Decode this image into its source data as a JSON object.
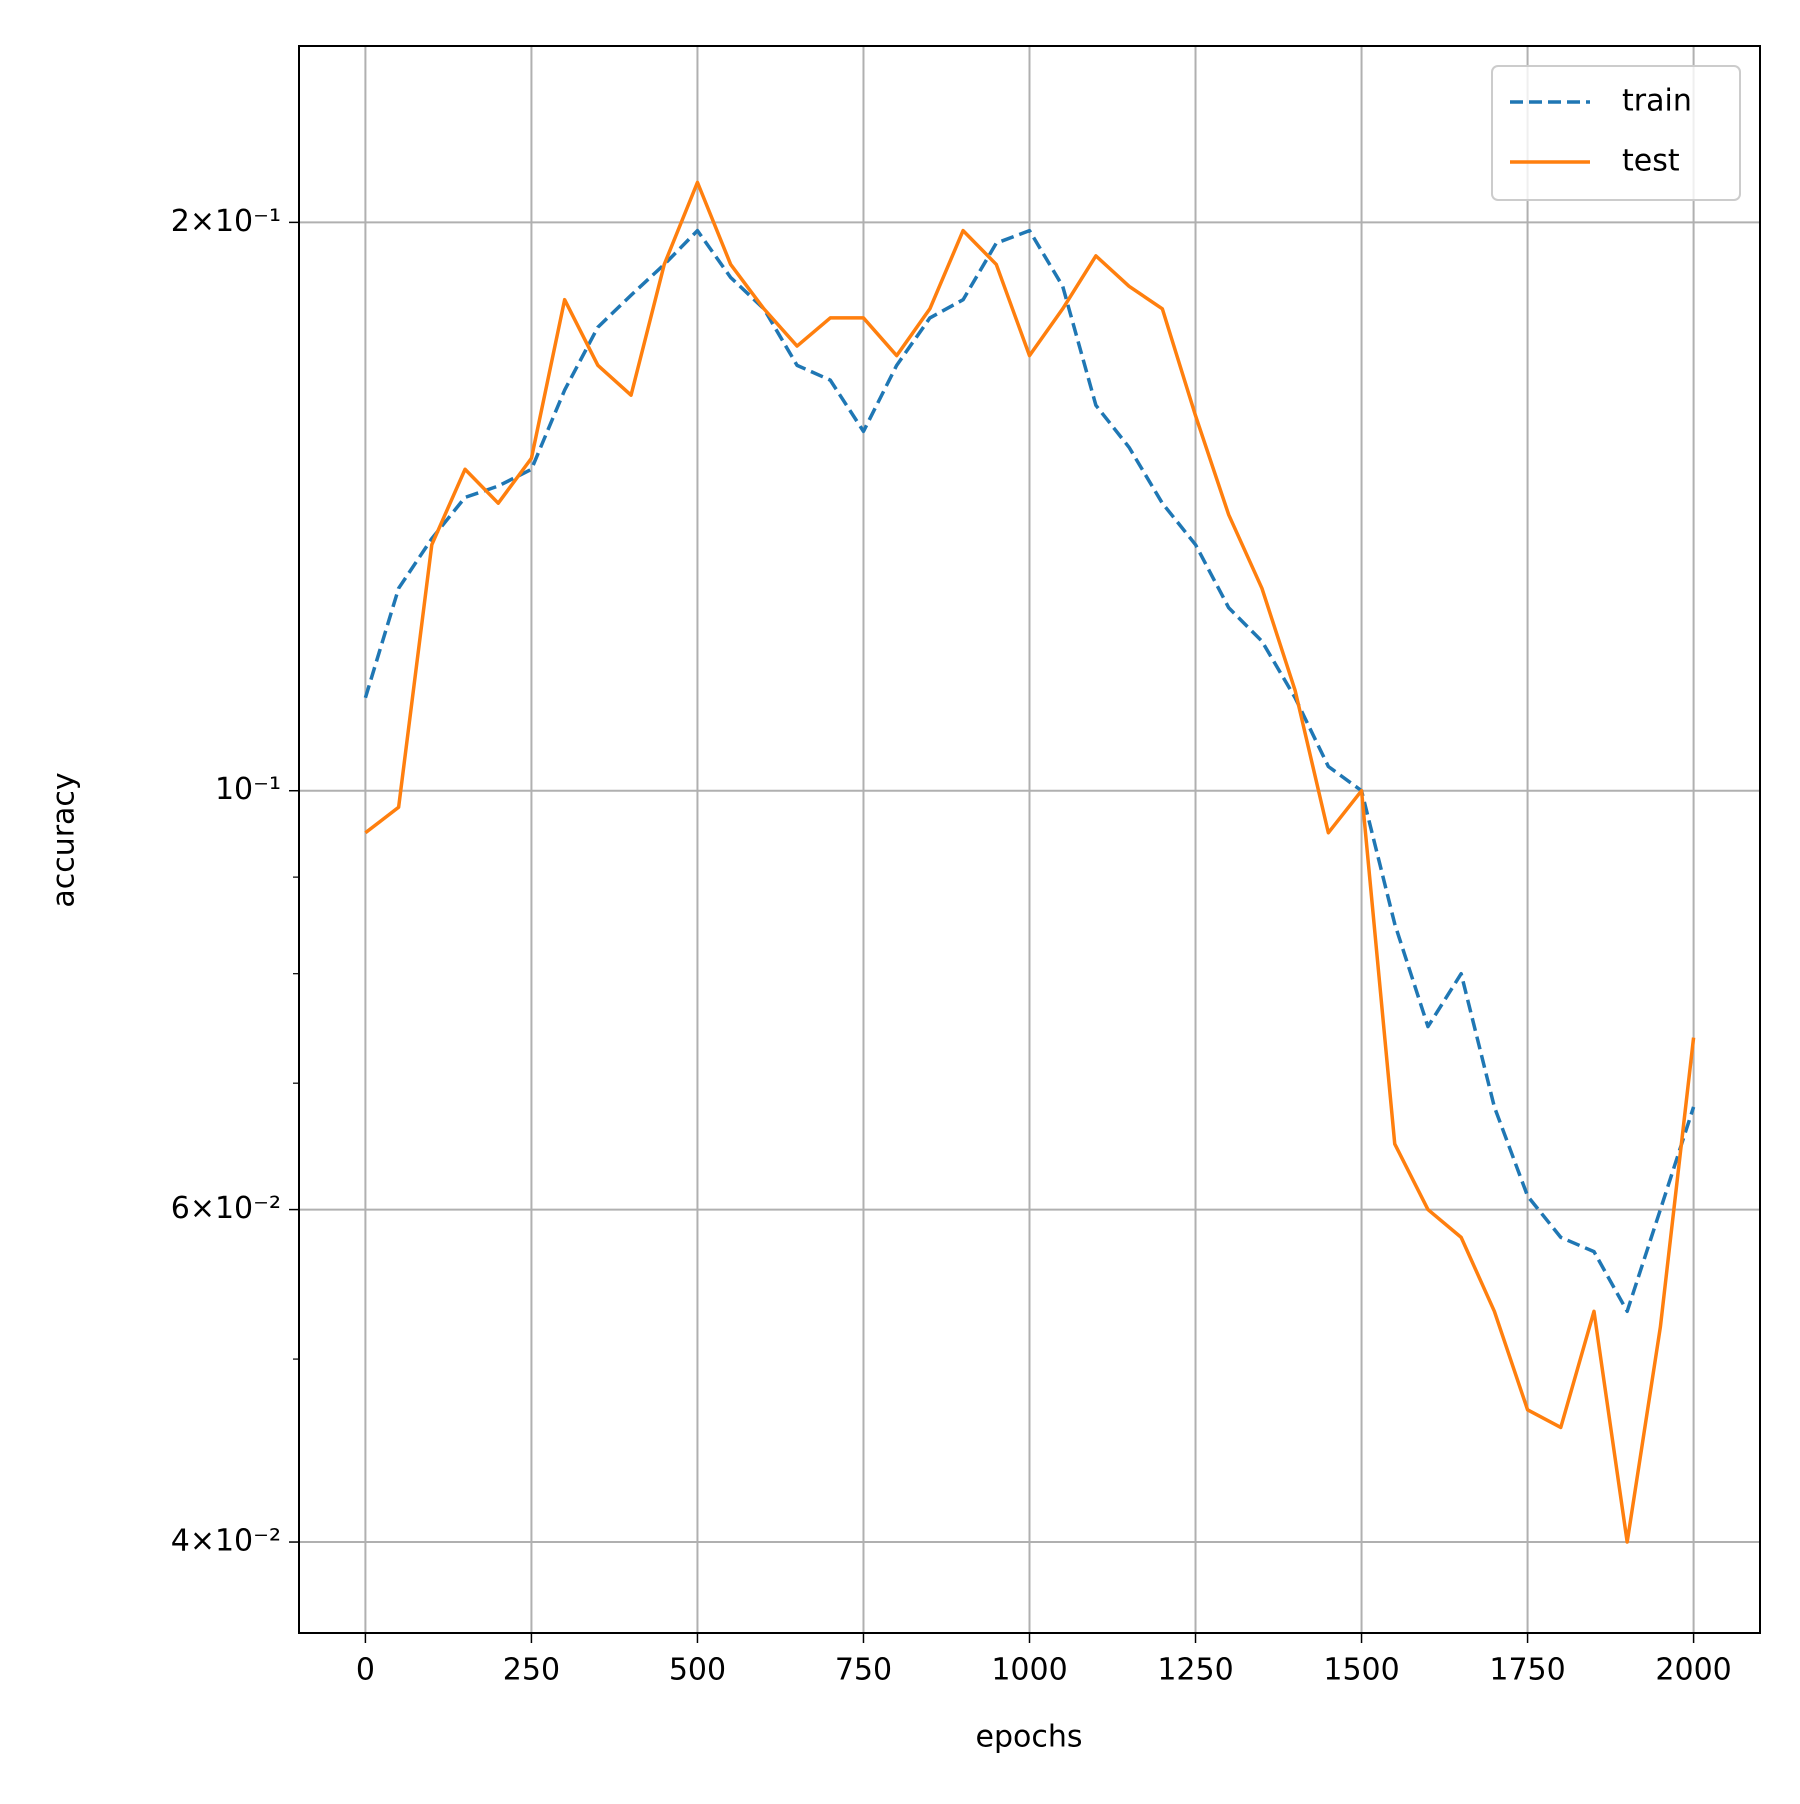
{
  "chart_data": {
    "type": "line",
    "xlabel": "epochs",
    "ylabel": "accuracy",
    "x": [
      0,
      50,
      100,
      150,
      200,
      250,
      300,
      350,
      400,
      450,
      500,
      550,
      600,
      650,
      700,
      750,
      800,
      850,
      900,
      950,
      1000,
      1050,
      1100,
      1150,
      1200,
      1250,
      1300,
      1350,
      1400,
      1450,
      1500,
      1550,
      1600,
      1650,
      1700,
      1750,
      1800,
      1850,
      1900,
      1950,
      2000
    ],
    "series": [
      {
        "name": "train",
        "color": "#1f77b4",
        "dashed": true,
        "values": [
          0.112,
          0.128,
          0.136,
          0.143,
          0.145,
          0.148,
          0.163,
          0.176,
          0.183,
          0.19,
          0.198,
          0.187,
          0.18,
          0.168,
          0.165,
          0.155,
          0.168,
          0.178,
          0.182,
          0.195,
          0.198,
          0.185,
          0.16,
          0.152,
          0.142,
          0.135,
          0.125,
          0.12,
          0.112,
          0.103,
          0.1,
          0.085,
          0.075,
          0.08,
          0.068,
          0.061,
          0.058,
          0.057,
          0.053,
          0.06,
          0.068
        ]
      },
      {
        "name": "test",
        "color": "#ff7f0e",
        "dashed": false,
        "values": [
          0.095,
          0.098,
          0.135,
          0.148,
          0.142,
          0.15,
          0.182,
          0.168,
          0.162,
          0.19,
          0.21,
          0.19,
          0.18,
          0.172,
          0.178,
          0.178,
          0.17,
          0.18,
          0.198,
          0.19,
          0.17,
          0.18,
          0.192,
          0.185,
          0.18,
          0.158,
          0.14,
          0.128,
          0.113,
          0.095,
          0.1,
          0.065,
          0.06,
          0.058,
          0.053,
          0.047,
          0.046,
          0.053,
          0.04,
          0.052,
          0.074
        ]
      }
    ],
    "xlim": [
      -100,
      2100
    ],
    "xticks": [
      0,
      250,
      500,
      750,
      1000,
      1250,
      1500,
      1750,
      2000
    ],
    "ylim": [
      0.0358,
      0.248
    ],
    "ylog": true,
    "yticks": [
      {
        "value": 0.04,
        "label": "4×10⁻²"
      },
      {
        "value": 0.06,
        "label": "6×10⁻²"
      },
      {
        "value": 0.1,
        "label": "10⁻¹"
      },
      {
        "value": 0.2,
        "label": "2×10⁻¹"
      }
    ],
    "yminorticks": [
      0.05,
      0.07,
      0.08,
      0.09
    ],
    "grid": true,
    "legend_loc": "upper right"
  }
}
